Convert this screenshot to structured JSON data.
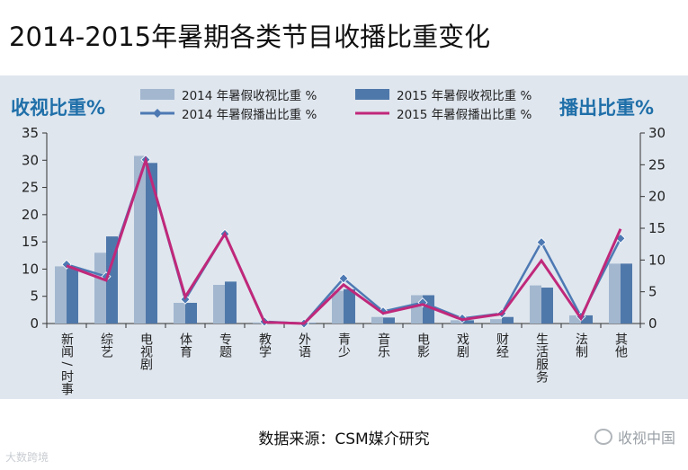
{
  "title": "2014-2015年暑期各类节目收播比重变化",
  "left_axis_title": "收视比重%",
  "right_axis_title": "播出比重%",
  "source": "数据来源：CSM媒介研究",
  "brand": "收视中国",
  "watermark": "大数跨境",
  "colors": {
    "bar2014": "#a3b7cf",
    "bar2015": "#4f78aa",
    "line2014": "#4d79b3",
    "line2015": "#c0287a",
    "axis_title": "#1f6fa9",
    "panel": "#dfe6ee"
  },
  "chart_data": {
    "type": "bar+line",
    "categories": [
      "新闻 / 时事",
      "综艺",
      "电视剧",
      "体育",
      "专题",
      "教学",
      "外语",
      "青少",
      "音乐",
      "电影",
      "戏剧",
      "财经",
      "生活服务",
      "法制",
      "其他"
    ],
    "series": [
      {
        "name": "2014 年暑假收视比重 %",
        "type": "bar",
        "axis": "left",
        "values": [
          10.5,
          13,
          30.8,
          3.8,
          7.1,
          0.2,
          0.1,
          6,
          1.2,
          5.2,
          0.6,
          0.8,
          7,
          1.5,
          11
        ]
      },
      {
        "name": "2015 年暑假收视比重 %",
        "type": "bar",
        "axis": "left",
        "values": [
          10.3,
          16,
          29.5,
          3.8,
          7.7,
          0.2,
          0.1,
          6.3,
          1.1,
          5.2,
          0.6,
          1.2,
          6.6,
          1.5,
          11
        ]
      },
      {
        "name": "2014 年暑假播出比重 %",
        "type": "line",
        "axis": "right",
        "values": [
          9.3,
          7.4,
          25.8,
          3.8,
          14.1,
          0.3,
          0,
          7.1,
          1.9,
          3.3,
          0.8,
          1.6,
          12.8,
          1.1,
          13.4
        ]
      },
      {
        "name": "2015 年暑假播出比重 %",
        "type": "line",
        "axis": "right",
        "values": [
          9.1,
          6.8,
          25.7,
          4.2,
          14.1,
          0.2,
          0,
          6.1,
          1.6,
          3,
          0.6,
          1.5,
          9.9,
          0.8,
          14.9
        ]
      }
    ],
    "y_left": {
      "min": 0,
      "max": 35,
      "ticks": [
        0,
        5,
        10,
        15,
        20,
        25,
        30,
        35
      ]
    },
    "y_right": {
      "min": 0,
      "max": 30,
      "ticks": [
        0,
        5,
        10,
        15,
        20,
        25,
        30
      ]
    },
    "legend_position": "top-center",
    "grid": false
  }
}
